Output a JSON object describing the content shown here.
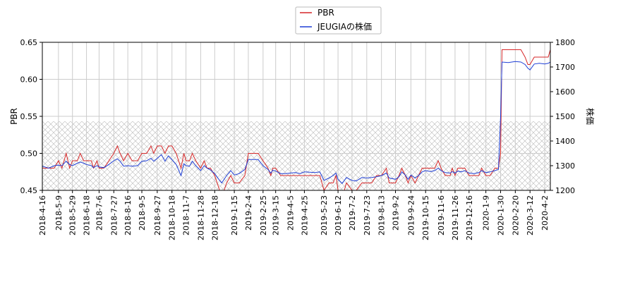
{
  "chart_data": {
    "type": "line",
    "title": "",
    "xlabel": "",
    "ylabel_left": "PBR",
    "ylabel_right": "株価",
    "ylim_left": [
      0.45,
      0.65
    ],
    "ylim_right": [
      1200,
      1800
    ],
    "yticks_left": [
      "0.45",
      "0.50",
      "0.55",
      "0.60",
      "0.65"
    ],
    "yticks_right": [
      "1200",
      "1300",
      "1400",
      "1500",
      "1600",
      "1700",
      "1800"
    ],
    "x_range": [
      "2018-04-16",
      "2020-04-10"
    ],
    "x_ticks": [
      "2018-4-16",
      "2018-5-9",
      "2018-5-29",
      "2018-6-18",
      "2018-7-6",
      "2018-7-27",
      "2018-8-16",
      "2018-9-5",
      "2018-9-27",
      "2018-10-18",
      "2018-11-7",
      "2018-11-28",
      "2018-12-18",
      "2019-1-15",
      "2019-2-4",
      "2019-2-25",
      "2019-3-15",
      "2019-4-5",
      "2019-4-25",
      "2019-5-23",
      "2019-6-12",
      "2019-7-2",
      "2019-7-23",
      "2019-8-13",
      "2019-9-2",
      "2019-9-24",
      "2019-10-15",
      "2019-11-6",
      "2019-11-26",
      "2019-12-16",
      "2020-1-9",
      "2020-1-30",
      "2020-2-20",
      "2020-3-12",
      "2020-4-2"
    ],
    "grid": true,
    "legend_position": "top-center",
    "hatched_band": {
      "axis": "right",
      "from": 1200,
      "to": 1480
    },
    "series": [
      {
        "name": "PBR",
        "axis": "left",
        "color": "#d62728",
        "points": [
          [
            "2018-04-16",
            0.48
          ],
          [
            "2018-04-25",
            0.48
          ],
          [
            "2018-05-03",
            0.48
          ],
          [
            "2018-05-09",
            0.49
          ],
          [
            "2018-05-14",
            0.48
          ],
          [
            "2018-05-20",
            0.5
          ],
          [
            "2018-05-25",
            0.48
          ],
          [
            "2018-05-29",
            0.49
          ],
          [
            "2018-06-05",
            0.49
          ],
          [
            "2018-06-09",
            0.5
          ],
          [
            "2018-06-14",
            0.49
          ],
          [
            "2018-06-18",
            0.49
          ],
          [
            "2018-06-25",
            0.49
          ],
          [
            "2018-06-28",
            0.48
          ],
          [
            "2018-07-03",
            0.49
          ],
          [
            "2018-07-06",
            0.48
          ],
          [
            "2018-07-13",
            0.48
          ],
          [
            "2018-07-20",
            0.49
          ],
          [
            "2018-07-27",
            0.5
          ],
          [
            "2018-08-01",
            0.51
          ],
          [
            "2018-08-05",
            0.5
          ],
          [
            "2018-08-10",
            0.49
          ],
          [
            "2018-08-16",
            0.5
          ],
          [
            "2018-08-22",
            0.49
          ],
          [
            "2018-08-30",
            0.49
          ],
          [
            "2018-09-05",
            0.5
          ],
          [
            "2018-09-12",
            0.5
          ],
          [
            "2018-09-18",
            0.51
          ],
          [
            "2018-09-22",
            0.5
          ],
          [
            "2018-09-27",
            0.51
          ],
          [
            "2018-10-03",
            0.51
          ],
          [
            "2018-10-08",
            0.5
          ],
          [
            "2018-10-13",
            0.51
          ],
          [
            "2018-10-18",
            0.51
          ],
          [
            "2018-10-24",
            0.5
          ],
          [
            "2018-10-31",
            0.48
          ],
          [
            "2018-11-04",
            0.5
          ],
          [
            "2018-11-07",
            0.49
          ],
          [
            "2018-11-12",
            0.49
          ],
          [
            "2018-11-16",
            0.5
          ],
          [
            "2018-11-21",
            0.49
          ],
          [
            "2018-11-28",
            0.48
          ],
          [
            "2018-12-03",
            0.49
          ],
          [
            "2018-12-07",
            0.48
          ],
          [
            "2018-12-12",
            0.48
          ],
          [
            "2018-12-18",
            0.47
          ],
          [
            "2018-12-25",
            0.45
          ],
          [
            "2018-12-28",
            0.44
          ],
          [
            "2019-01-04",
            0.46
          ],
          [
            "2019-01-10",
            0.47
          ],
          [
            "2019-01-15",
            0.46
          ],
          [
            "2019-01-22",
            0.46
          ],
          [
            "2019-01-30",
            0.47
          ],
          [
            "2019-02-04",
            0.5
          ],
          [
            "2019-02-12",
            0.5
          ],
          [
            "2019-02-18",
            0.5
          ],
          [
            "2019-02-25",
            0.49
          ],
          [
            "2019-03-04",
            0.48
          ],
          [
            "2019-03-08",
            0.47
          ],
          [
            "2019-03-11",
            0.48
          ],
          [
            "2019-03-15",
            0.48
          ],
          [
            "2019-03-22",
            0.47
          ],
          [
            "2019-03-29",
            0.47
          ],
          [
            "2019-04-05",
            0.47
          ],
          [
            "2019-04-12",
            0.47
          ],
          [
            "2019-04-19",
            0.47
          ],
          [
            "2019-04-25",
            0.47
          ],
          [
            "2019-05-10",
            0.47
          ],
          [
            "2019-05-17",
            0.47
          ],
          [
            "2019-05-23",
            0.45
          ],
          [
            "2019-05-30",
            0.46
          ],
          [
            "2019-06-05",
            0.46
          ],
          [
            "2019-06-09",
            0.47
          ],
          [
            "2019-06-12",
            0.45
          ],
          [
            "2019-06-18",
            0.44
          ],
          [
            "2019-06-24",
            0.46
          ],
          [
            "2019-07-02",
            0.45
          ],
          [
            "2019-07-08",
            0.45
          ],
          [
            "2019-07-16",
            0.46
          ],
          [
            "2019-07-23",
            0.46
          ],
          [
            "2019-07-30",
            0.46
          ],
          [
            "2019-08-06",
            0.47
          ],
          [
            "2019-08-13",
            0.47
          ],
          [
            "2019-08-20",
            0.48
          ],
          [
            "2019-08-24",
            0.46
          ],
          [
            "2019-09-02",
            0.46
          ],
          [
            "2019-09-07",
            0.47
          ],
          [
            "2019-09-11",
            0.48
          ],
          [
            "2019-09-16",
            0.47
          ],
          [
            "2019-09-20",
            0.46
          ],
          [
            "2019-09-24",
            0.47
          ],
          [
            "2019-09-30",
            0.46
          ],
          [
            "2019-10-05",
            0.47
          ],
          [
            "2019-10-10",
            0.48
          ],
          [
            "2019-10-15",
            0.48
          ],
          [
            "2019-10-22",
            0.48
          ],
          [
            "2019-10-28",
            0.48
          ],
          [
            "2019-11-02",
            0.49
          ],
          [
            "2019-11-06",
            0.48
          ],
          [
            "2019-11-12",
            0.47
          ],
          [
            "2019-11-19",
            0.47
          ],
          [
            "2019-11-22",
            0.48
          ],
          [
            "2019-11-26",
            0.47
          ],
          [
            "2019-11-30",
            0.48
          ],
          [
            "2019-12-05",
            0.48
          ],
          [
            "2019-12-10",
            0.48
          ],
          [
            "2019-12-16",
            0.47
          ],
          [
            "2019-12-23",
            0.47
          ],
          [
            "2019-12-30",
            0.47
          ],
          [
            "2020-01-03",
            0.48
          ],
          [
            "2020-01-09",
            0.47
          ],
          [
            "2020-01-15",
            0.47
          ],
          [
            "2020-01-22",
            0.48
          ],
          [
            "2020-01-27",
            0.48
          ],
          [
            "2020-01-30",
            0.5
          ],
          [
            "2020-02-01",
            0.64
          ],
          [
            "2020-02-10",
            0.64
          ],
          [
            "2020-02-20",
            0.64
          ],
          [
            "2020-02-28",
            0.64
          ],
          [
            "2020-03-05",
            0.63
          ],
          [
            "2020-03-09",
            0.62
          ],
          [
            "2020-03-12",
            0.62
          ],
          [
            "2020-03-18",
            0.63
          ],
          [
            "2020-03-25",
            0.63
          ],
          [
            "2020-04-02",
            0.63
          ],
          [
            "2020-04-07",
            0.63
          ],
          [
            "2020-04-10",
            0.64
          ]
        ]
      },
      {
        "name": "JEUGIAの株価",
        "axis": "right",
        "color": "#1f3fd6",
        "points": [
          [
            "2018-04-16",
            1298
          ],
          [
            "2018-04-25",
            1290
          ],
          [
            "2018-05-03",
            1300
          ],
          [
            "2018-05-09",
            1302
          ],
          [
            "2018-05-14",
            1300
          ],
          [
            "2018-05-20",
            1318
          ],
          [
            "2018-05-25",
            1305
          ],
          [
            "2018-05-29",
            1300
          ],
          [
            "2018-06-05",
            1310
          ],
          [
            "2018-06-09",
            1315
          ],
          [
            "2018-06-14",
            1310
          ],
          [
            "2018-06-18",
            1305
          ],
          [
            "2018-06-25",
            1300
          ],
          [
            "2018-06-28",
            1292
          ],
          [
            "2018-07-03",
            1300
          ],
          [
            "2018-07-06",
            1295
          ],
          [
            "2018-07-13",
            1292
          ],
          [
            "2018-07-20",
            1305
          ],
          [
            "2018-07-27",
            1320
          ],
          [
            "2018-08-01",
            1328
          ],
          [
            "2018-08-05",
            1318
          ],
          [
            "2018-08-10",
            1298
          ],
          [
            "2018-08-16",
            1300
          ],
          [
            "2018-08-22",
            1298
          ],
          [
            "2018-08-30",
            1300
          ],
          [
            "2018-09-05",
            1318
          ],
          [
            "2018-09-12",
            1320
          ],
          [
            "2018-09-18",
            1330
          ],
          [
            "2018-09-22",
            1318
          ],
          [
            "2018-09-27",
            1330
          ],
          [
            "2018-10-03",
            1345
          ],
          [
            "2018-10-08",
            1318
          ],
          [
            "2018-10-13",
            1340
          ],
          [
            "2018-10-18",
            1325
          ],
          [
            "2018-10-24",
            1305
          ],
          [
            "2018-10-31",
            1260
          ],
          [
            "2018-11-04",
            1308
          ],
          [
            "2018-11-07",
            1300
          ],
          [
            "2018-11-12",
            1298
          ],
          [
            "2018-11-16",
            1318
          ],
          [
            "2018-11-21",
            1300
          ],
          [
            "2018-11-28",
            1280
          ],
          [
            "2018-12-03",
            1300
          ],
          [
            "2018-12-07",
            1290
          ],
          [
            "2018-12-12",
            1283
          ],
          [
            "2018-12-18",
            1268
          ],
          [
            "2018-12-25",
            1240
          ],
          [
            "2018-12-28",
            1230
          ],
          [
            "2019-01-04",
            1260
          ],
          [
            "2019-01-10",
            1280
          ],
          [
            "2019-01-15",
            1262
          ],
          [
            "2019-01-22",
            1268
          ],
          [
            "2019-01-30",
            1285
          ],
          [
            "2019-02-04",
            1325
          ],
          [
            "2019-02-12",
            1325
          ],
          [
            "2019-02-18",
            1325
          ],
          [
            "2019-02-25",
            1300
          ],
          [
            "2019-03-04",
            1285
          ],
          [
            "2019-03-08",
            1270
          ],
          [
            "2019-03-11",
            1282
          ],
          [
            "2019-03-15",
            1278
          ],
          [
            "2019-03-22",
            1268
          ],
          [
            "2019-03-29",
            1268
          ],
          [
            "2019-04-05",
            1270
          ],
          [
            "2019-04-12",
            1272
          ],
          [
            "2019-04-19",
            1268
          ],
          [
            "2019-04-25",
            1275
          ],
          [
            "2019-05-10",
            1272
          ],
          [
            "2019-05-17",
            1275
          ],
          [
            "2019-05-23",
            1240
          ],
          [
            "2019-05-30",
            1250
          ],
          [
            "2019-06-05",
            1260
          ],
          [
            "2019-06-09",
            1270
          ],
          [
            "2019-06-12",
            1245
          ],
          [
            "2019-06-18",
            1228
          ],
          [
            "2019-06-24",
            1252
          ],
          [
            "2019-07-02",
            1240
          ],
          [
            "2019-07-08",
            1238
          ],
          [
            "2019-07-16",
            1252
          ],
          [
            "2019-07-23",
            1250
          ],
          [
            "2019-07-30",
            1252
          ],
          [
            "2019-08-06",
            1255
          ],
          [
            "2019-08-13",
            1260
          ],
          [
            "2019-08-20",
            1270
          ],
          [
            "2019-08-24",
            1250
          ],
          [
            "2019-09-02",
            1245
          ],
          [
            "2019-09-07",
            1255
          ],
          [
            "2019-09-11",
            1275
          ],
          [
            "2019-09-16",
            1262
          ],
          [
            "2019-09-20",
            1245
          ],
          [
            "2019-09-24",
            1262
          ],
          [
            "2019-09-30",
            1250
          ],
          [
            "2019-10-05",
            1260
          ],
          [
            "2019-10-10",
            1275
          ],
          [
            "2019-10-15",
            1280
          ],
          [
            "2019-10-22",
            1276
          ],
          [
            "2019-10-28",
            1280
          ],
          [
            "2019-11-02",
            1290
          ],
          [
            "2019-11-06",
            1280
          ],
          [
            "2019-11-12",
            1272
          ],
          [
            "2019-11-19",
            1270
          ],
          [
            "2019-11-22",
            1276
          ],
          [
            "2019-11-26",
            1270
          ],
          [
            "2019-11-30",
            1278
          ],
          [
            "2019-12-05",
            1275
          ],
          [
            "2019-12-10",
            1280
          ],
          [
            "2019-12-16",
            1270
          ],
          [
            "2019-12-23",
            1268
          ],
          [
            "2019-12-30",
            1272
          ],
          [
            "2020-01-03",
            1280
          ],
          [
            "2020-01-09",
            1272
          ],
          [
            "2020-01-15",
            1275
          ],
          [
            "2020-01-22",
            1280
          ],
          [
            "2020-01-27",
            1285
          ],
          [
            "2020-01-30",
            1500
          ],
          [
            "2020-02-01",
            1720
          ],
          [
            "2020-02-10",
            1718
          ],
          [
            "2020-02-20",
            1722
          ],
          [
            "2020-02-28",
            1720
          ],
          [
            "2020-03-05",
            1710
          ],
          [
            "2020-03-09",
            1695
          ],
          [
            "2020-03-12",
            1688
          ],
          [
            "2020-03-18",
            1712
          ],
          [
            "2020-03-25",
            1715
          ],
          [
            "2020-04-02",
            1712
          ],
          [
            "2020-04-07",
            1715
          ],
          [
            "2020-04-10",
            1720
          ]
        ]
      }
    ]
  }
}
